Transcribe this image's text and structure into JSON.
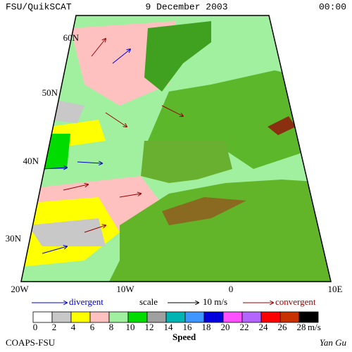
{
  "header": {
    "left": "FSU/QuikSCAT",
    "center": "9 December 2003",
    "right": "00:00"
  },
  "lat_labels": [
    "60N",
    "50N",
    "40N",
    "30N"
  ],
  "lon_labels": [
    "20W",
    "10W",
    "0",
    "10E"
  ],
  "legend": {
    "divergent": "divergent",
    "scale": "scale",
    "scale_value": "10 m/s",
    "convergent": "convergent"
  },
  "colorbar": {
    "labels": [
      "0",
      "2",
      "4",
      "6",
      "8",
      "10",
      "12",
      "14",
      "16",
      "18",
      "20",
      "22",
      "24",
      "26",
      "28"
    ],
    "colors": [
      "#ffffff",
      "#c8c8c8",
      "#ffff00",
      "#ffc0c0",
      "#a0f0a0",
      "#00dc00",
      "#a0a0a0",
      "#00b4b4",
      "#4096ff",
      "#0000dc",
      "#ff50ff",
      "#b464ff",
      "#ff0000",
      "#c83200",
      "#000000"
    ],
    "unit": "m/s",
    "title": "Speed"
  },
  "footer": {
    "left": "COAPS-FSU",
    "right": "Yan Gu"
  }
}
